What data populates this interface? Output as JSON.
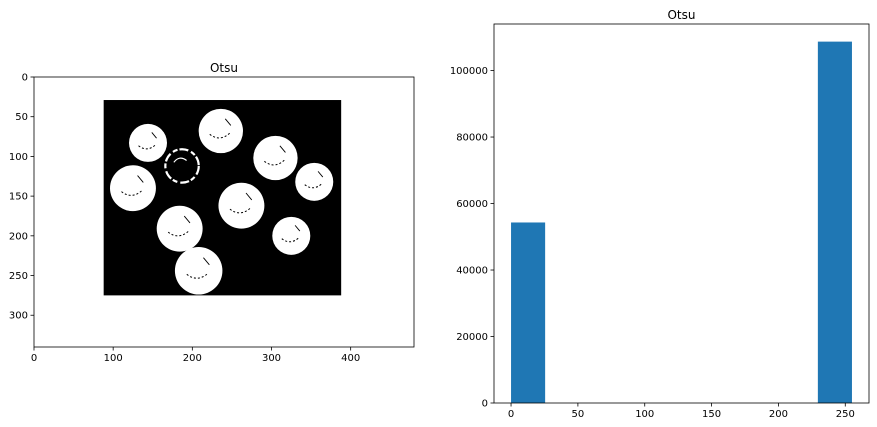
{
  "chart_data": [
    {
      "type": "image",
      "title": "Otsu",
      "xlim": [
        0,
        480
      ],
      "ylim": [
        340,
        0
      ],
      "xticks": [
        0,
        100,
        200,
        300,
        400
      ],
      "xtick_labels": [
        "0",
        "100",
        "200",
        "300",
        "400"
      ],
      "yticks": [
        0,
        50,
        100,
        150,
        200,
        250,
        300
      ],
      "ytick_labels": [
        "0",
        "50",
        "100",
        "150",
        "200",
        "250",
        "300"
      ],
      "background_color": "#ffffff",
      "mask_color": "#000000",
      "foreground_color": "#ffffff",
      "mask_region": {
        "x0": 88,
        "x1": 388,
        "y0": 29,
        "y1": 275
      },
      "coins": [
        {
          "cx": 144,
          "cy": 83,
          "r": 24
        },
        {
          "cx": 236,
          "cy": 68,
          "r": 28
        },
        {
          "cx": 305,
          "cy": 102,
          "r": 28
        },
        {
          "cx": 187,
          "cy": 112,
          "r": 23,
          "ring": true
        },
        {
          "cx": 125,
          "cy": 140,
          "r": 29
        },
        {
          "cx": 354,
          "cy": 132,
          "r": 24
        },
        {
          "cx": 262,
          "cy": 162,
          "r": 29
        },
        {
          "cx": 184,
          "cy": 191,
          "r": 29
        },
        {
          "cx": 325,
          "cy": 200,
          "r": 24
        },
        {
          "cx": 208,
          "cy": 244,
          "r": 30
        }
      ],
      "grid": false
    },
    {
      "type": "bar",
      "title": "Otsu",
      "bins": [
        {
          "x0": 0,
          "x1": 25.5,
          "value": 54300
        },
        {
          "x0": 25.5,
          "x1": 51,
          "value": 0
        },
        {
          "x0": 51,
          "x1": 76.5,
          "value": 0
        },
        {
          "x0": 76.5,
          "x1": 102,
          "value": 0
        },
        {
          "x0": 102,
          "x1": 127.5,
          "value": 0
        },
        {
          "x0": 127.5,
          "x1": 153,
          "value": 0
        },
        {
          "x0": 153,
          "x1": 178.5,
          "value": 0
        },
        {
          "x0": 178.5,
          "x1": 204,
          "value": 0
        },
        {
          "x0": 204,
          "x1": 229.5,
          "value": 0
        },
        {
          "x0": 229.5,
          "x1": 255,
          "value": 108700
        }
      ],
      "xlim": [
        -12.75,
        267.75
      ],
      "ylim": [
        0,
        114000
      ],
      "xticks": [
        0,
        50,
        100,
        150,
        200,
        250
      ],
      "xtick_labels": [
        "0",
        "50",
        "100",
        "150",
        "200",
        "250"
      ],
      "yticks": [
        0,
        20000,
        40000,
        60000,
        80000,
        100000
      ],
      "ytick_labels": [
        "0",
        "20000",
        "40000",
        "60000",
        "80000",
        "100000"
      ],
      "bar_color": "#1f77b4",
      "grid": false
    }
  ]
}
